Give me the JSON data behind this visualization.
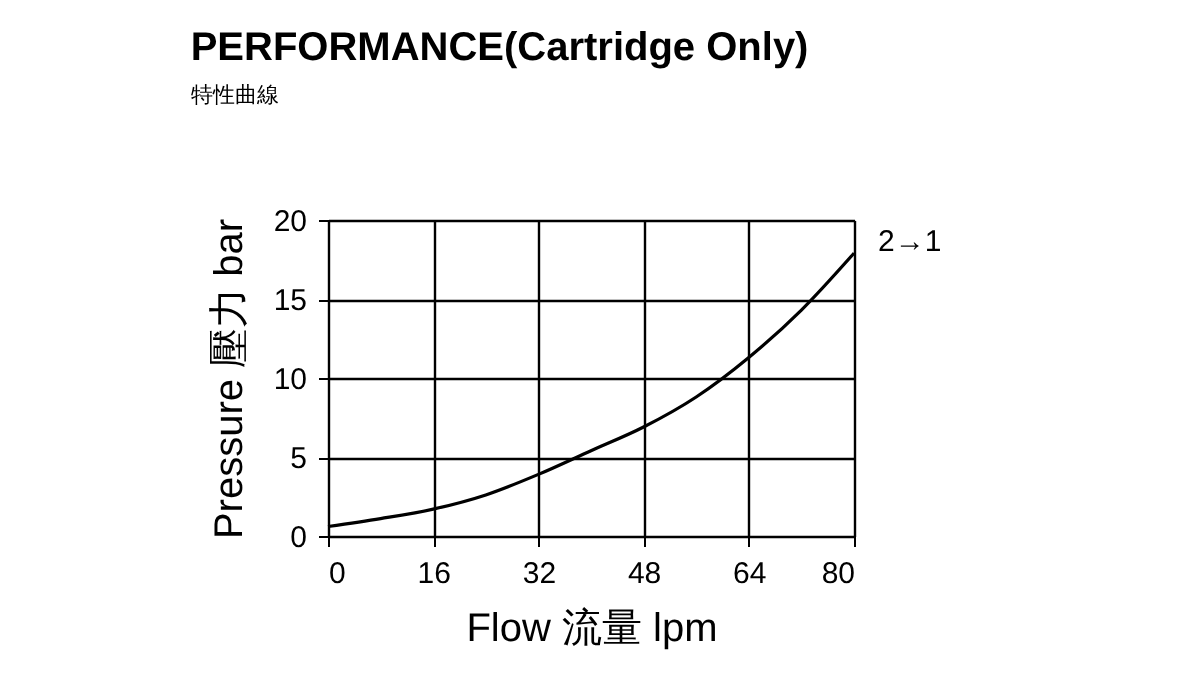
{
  "chart_data": {
    "type": "line",
    "title": "PERFORMANCE(Cartridge Only)",
    "subtitle": "特性曲線",
    "xlabel": "Flow 流量 lpm",
    "ylabel": "Pressure 壓力 bar",
    "x": [
      0,
      8,
      16,
      24,
      32,
      40,
      48,
      56,
      64,
      72,
      80
    ],
    "series": [
      {
        "name": "2→1",
        "color": "#000000",
        "values": [
          0.6,
          1.1,
          1.7,
          2.6,
          3.9,
          5.4,
          6.9,
          8.8,
          11.3,
          14.3,
          17.9
        ]
      }
    ],
    "xlim": [
      0,
      80
    ],
    "xticks": [
      0,
      16,
      32,
      48,
      64,
      80
    ],
    "ylim": [
      0,
      20
    ],
    "yticks": [
      0,
      5,
      10,
      15,
      20
    ],
    "grid": true,
    "legend": false
  }
}
